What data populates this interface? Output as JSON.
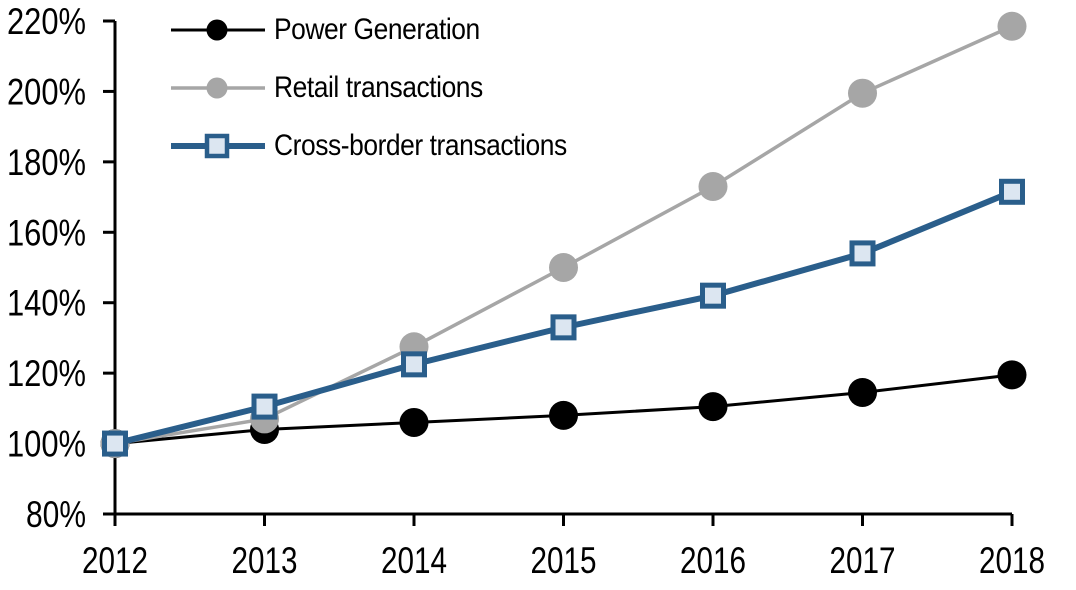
{
  "chart_data": {
    "type": "line",
    "title": "",
    "xlabel": "",
    "ylabel": "",
    "x": [
      2012,
      2013,
      2014,
      2015,
      2016,
      2017,
      2018
    ],
    "xtick_labels": [
      "2012",
      "2013",
      "2014",
      "2015",
      "2016",
      "2017",
      "2018"
    ],
    "ylim": [
      80,
      220
    ],
    "ytick_step": 20,
    "yticks": [
      80,
      100,
      120,
      140,
      160,
      180,
      200,
      220
    ],
    "ytick_labels": [
      "80%",
      "100%",
      "120%",
      "140%",
      "160%",
      "180%",
      "200%",
      "220%"
    ],
    "grid": false,
    "legend_position": "top-left",
    "axis_color": "#000000",
    "series": [
      {
        "name": "Power Generation",
        "values": [
          100,
          104,
          106,
          108,
          110.5,
          114.5,
          119.5
        ],
        "color": "#000000",
        "marker": "circle",
        "marker_fill": "#000000",
        "line_width": 3
      },
      {
        "name": "Retail transactions",
        "values": [
          100,
          107,
          127.5,
          150,
          173,
          199.5,
          218.5
        ],
        "color": "#A6A6A6",
        "marker": "circle",
        "marker_fill": "#A6A6A6",
        "line_width": 3.5
      },
      {
        "name": "Cross-border transactions",
        "values": [
          100,
          110.5,
          122.5,
          133,
          142,
          154,
          171.5
        ],
        "color": "#2A5E8B",
        "marker": "square",
        "marker_fill": "#DCE6F1",
        "line_width": 6
      }
    ]
  }
}
